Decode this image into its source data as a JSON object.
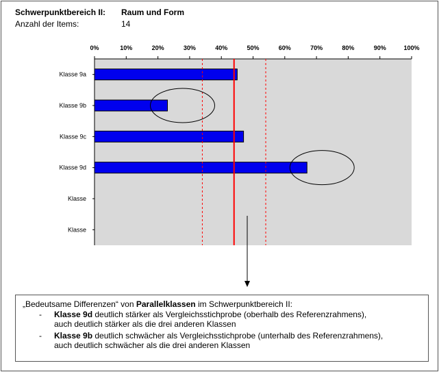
{
  "header": {
    "label_area": "Schwerpunktbereich II:",
    "value_area": "Raum und Form",
    "label_items": "Anzahl der Items:",
    "value_items": "14"
  },
  "chart_data": {
    "type": "bar",
    "orientation": "horizontal",
    "categories": [
      "Klasse 9a",
      "Klasse 9b",
      "Klasse 9c",
      "Klasse 9d",
      "Klasse",
      "Klasse"
    ],
    "values": [
      45,
      23,
      47,
      67,
      null,
      null
    ],
    "x_ticks": [
      "0%",
      "10%",
      "20%",
      "30%",
      "40%",
      "50%",
      "60%",
      "70%",
      "80%",
      "90%",
      "100%"
    ],
    "xlim": [
      0,
      100
    ],
    "axis_position": "top",
    "reference_value": 44,
    "reference_range": [
      34,
      54
    ],
    "highlighted": [
      "Klasse 9b",
      "Klasse 9d"
    ],
    "colors": {
      "bar": "#0000ee",
      "plot_background": "#d9d9d9",
      "reference_line": "#ff0000",
      "reference_range_lines": "#ff0000",
      "highlight_ellipse": "#000000"
    },
    "grid": false,
    "legend": false
  },
  "note": {
    "intro_pre": "„Bedeutsame Differenzen“ von ",
    "intro_bold": "Parallelklassen",
    "intro_post": " im Schwerpunktbereich II:",
    "items": [
      {
        "dash": "-",
        "bold": "Klasse 9d",
        "line1": " deutlich stärker als Vergleichsstichprobe (oberhalb des Referenzrahmens),",
        "line2": "auch deutlich stärker als die drei anderen Klassen"
      },
      {
        "dash": "-",
        "bold": "Klasse 9b",
        "line1": " deutlich schwächer als Vergleichsstichprobe (unterhalb des Referenzrahmens),",
        "line2": "auch deutlich schwächer als die drei anderen Klassen"
      }
    ]
  }
}
